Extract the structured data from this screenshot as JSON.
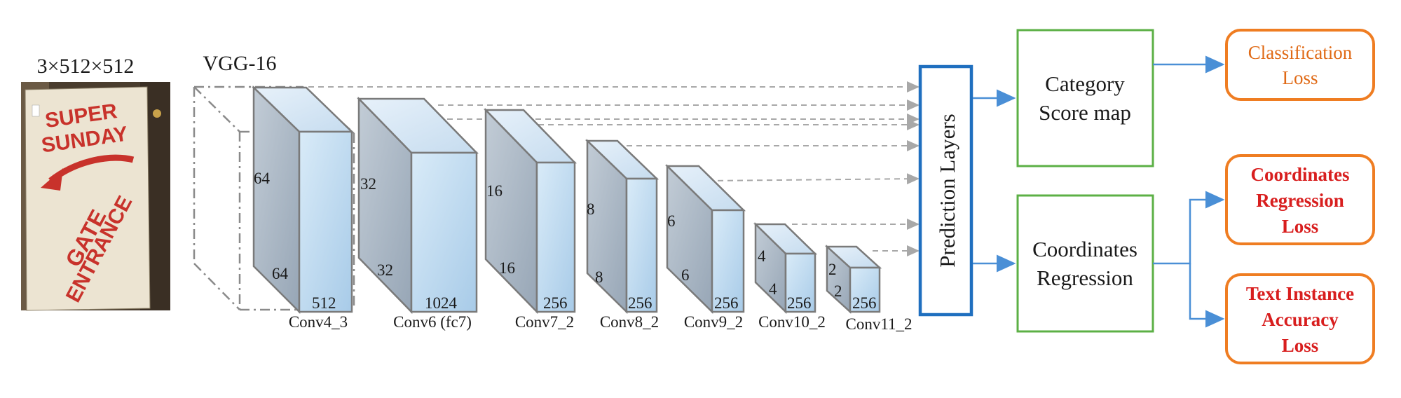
{
  "input": {
    "size_label": "3×512×512",
    "image_alt": "SUPER SUNDAY GATE ENTRANCE",
    "image_text_line1": "SUPER",
    "image_text_line2": "SUNDAY",
    "image_text_line3": "GATE",
    "image_text_line4": "ENTRANCE"
  },
  "backbone": {
    "label": "VGG-16"
  },
  "layers": [
    {
      "name": "Conv4_3",
      "height_dim": "64",
      "width_dim": "64",
      "depth": "512"
    },
    {
      "name": "Conv6 (fc7)",
      "height_dim": "32",
      "width_dim": "32",
      "depth": "1024"
    },
    {
      "name": "Conv7_2",
      "height_dim": "16",
      "width_dim": "16",
      "depth": "256"
    },
    {
      "name": "Conv8_2",
      "height_dim": "8",
      "width_dim": "8",
      "depth": "256"
    },
    {
      "name": "Conv9_2",
      "height_dim": "6",
      "width_dim": "6",
      "depth": "256"
    },
    {
      "name": "Conv10_2",
      "height_dim": "4",
      "width_dim": "4",
      "depth": "256"
    },
    {
      "name": "Conv11_2",
      "height_dim": "2",
      "width_dim": "2",
      "depth": "256"
    }
  ],
  "prediction": {
    "label": "Prediction Layers"
  },
  "heads": {
    "category": {
      "line1": "Category",
      "line2": "Score map"
    },
    "regression": {
      "line1": "Coordinates",
      "line2": "Regression"
    }
  },
  "losses": {
    "classification": {
      "line1": "Classification",
      "line2": "Loss"
    },
    "coords": {
      "line1": "Coordinates",
      "line2": "Regression",
      "line3": "Loss"
    },
    "text_instance": {
      "line1": "Text Instance",
      "line2": "Accuracy",
      "line3": "Loss"
    }
  },
  "colors": {
    "green_border": "#5cb046",
    "blue_border": "#1f6fbf",
    "orange_border": "#ef7d22",
    "orange_text": "#e06a16",
    "red_text": "#d81e1e",
    "arrow_blue": "#4a8fd6",
    "cube_front": "#bcd8ef",
    "cube_side": "#a9b7c6",
    "cube_top": "#d4e6f5"
  }
}
